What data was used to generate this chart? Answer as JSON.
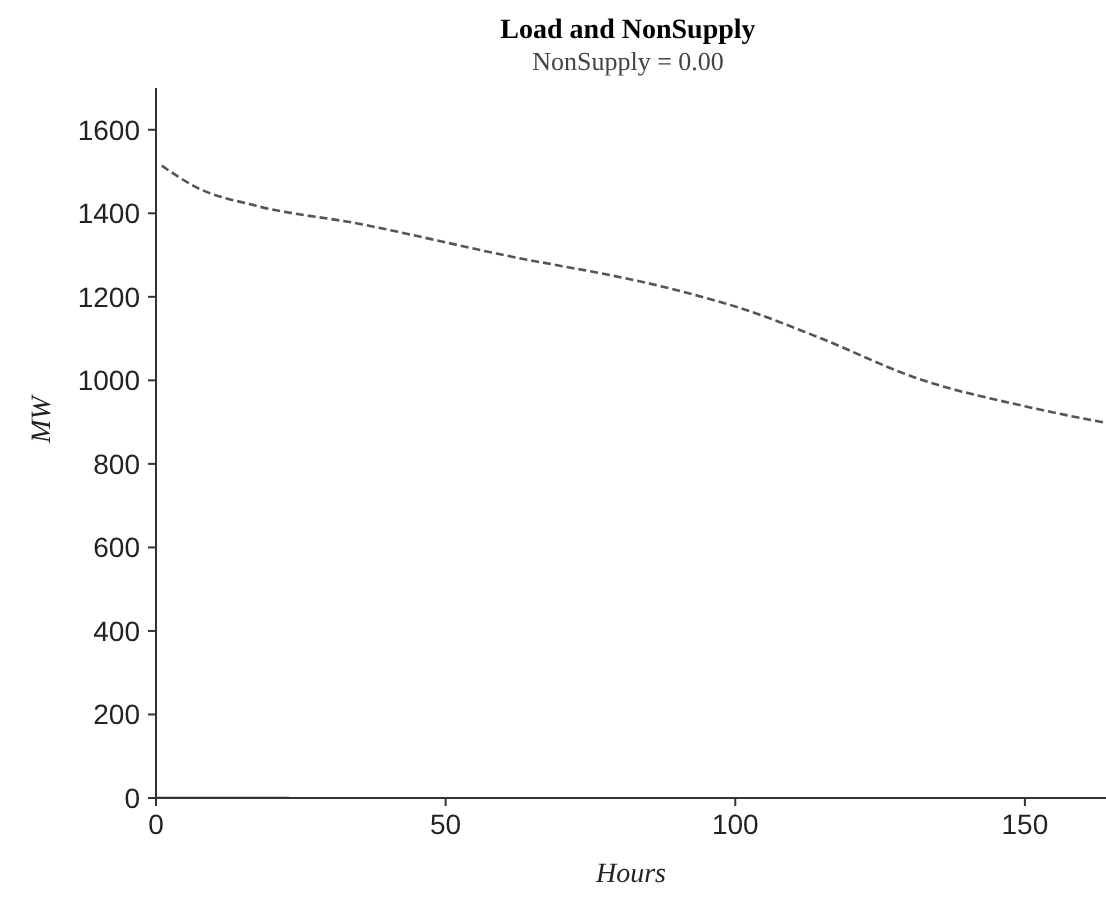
{
  "chart_data": {
    "type": "line",
    "title": "Load and NonSupply",
    "subtitle": "NonSupply = 0.00",
    "xlabel": "Hours",
    "ylabel": "MW",
    "xlim": [
      0,
      164
    ],
    "xticks": [
      0,
      50,
      100,
      150
    ],
    "ylim": [
      0,
      1700
    ],
    "yticks": [
      0,
      200,
      400,
      600,
      800,
      1000,
      1200,
      1400,
      1600
    ],
    "grid": false,
    "marker": "none",
    "series": [
      {
        "color": "#555555",
        "line_style": "dashed",
        "x": [
          1,
          7,
          17,
          35,
          59,
          89,
          102,
          114,
          132,
          150,
          164
        ],
        "values": [
          1514,
          1462,
          1419,
          1375,
          1303,
          1219,
          1168,
          1105,
          1002,
          938,
          898
        ]
      },
      {
        "color": "#333333",
        "line_style": "solid",
        "x": [
          0,
          23
        ],
        "values": [
          0,
          0
        ]
      }
    ]
  }
}
